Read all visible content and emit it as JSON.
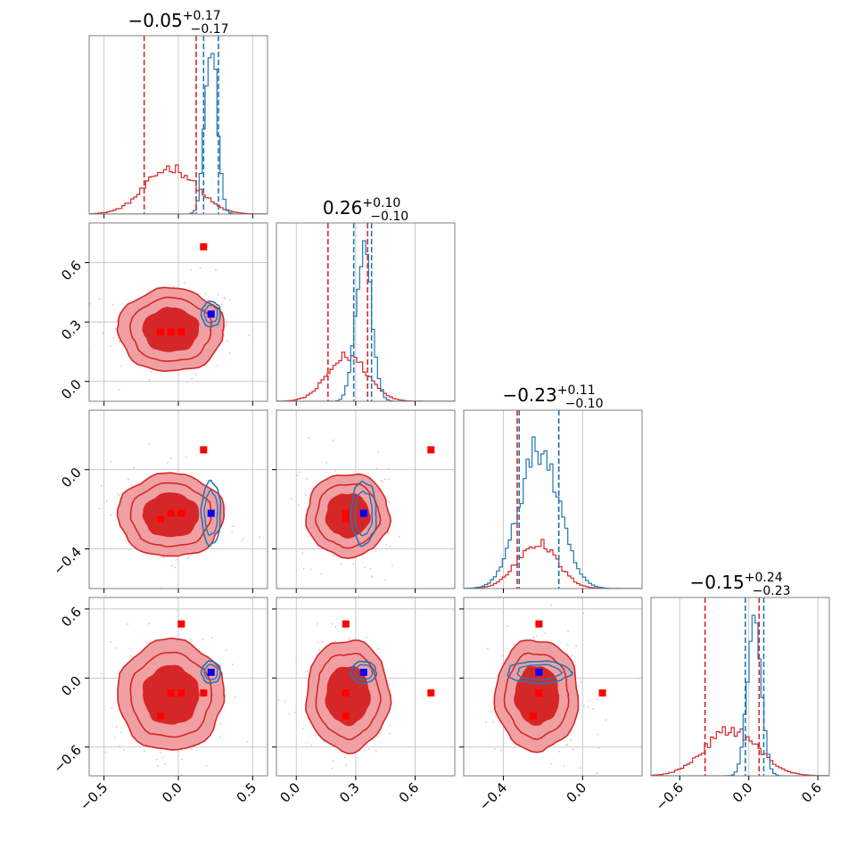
{
  "colors": {
    "posterior_a": "#d62728",
    "posterior_a_fill_light": "#f0a0a2",
    "posterior_b": "#1f77b4",
    "marker_truth": "#0000ff",
    "marker_other": "#ff0000",
    "grid": "#c8c8c8",
    "scatter_a": "#f6b7be",
    "scatter_b": "#b9cde6"
  },
  "chart_data": {
    "type": "corner",
    "parameters": [
      {
        "index": 0,
        "title_main": "−0.05",
        "title_sup": "+0.17",
        "title_sub": "−0.17",
        "range": [
          -0.6,
          0.6
        ],
        "ticks": [
          -0.5,
          0.0,
          0.5
        ],
        "tick_labels": [
          "−0.5",
          "0.0",
          "0.5"
        ],
        "hist_a": {
          "mean": -0.05,
          "sd": 0.17,
          "dashed": [
            -0.23,
            0.12
          ]
        },
        "hist_b": {
          "mean": 0.22,
          "sd": 0.04,
          "dashed": [
            0.17,
            0.27
          ]
        }
      },
      {
        "index": 1,
        "title_main": "0.26",
        "title_sup": "+0.10",
        "title_sub": "−0.10",
        "range": [
          -0.1,
          0.8
        ],
        "ticks": [
          0.0,
          0.3,
          0.6
        ],
        "tick_labels": [
          "0.0",
          "0.3",
          "0.6"
        ],
        "hist_a": {
          "mean": 0.26,
          "sd": 0.1,
          "dashed": [
            0.16,
            0.36
          ]
        },
        "hist_b": {
          "mean": 0.34,
          "sd": 0.04,
          "dashed": [
            0.29,
            0.38
          ]
        }
      },
      {
        "index": 2,
        "title_main": "−0.23",
        "title_sup": "+0.11",
        "title_sub": "−0.10",
        "range": [
          -0.6,
          0.3
        ],
        "ticks": [
          -0.4,
          0.0
        ],
        "tick_labels": [
          "−0.4",
          "0.0"
        ],
        "hist_a": {
          "mean": -0.23,
          "sd": 0.1,
          "dashed": [
            -0.33,
            -0.12
          ]
        },
        "hist_b": {
          "mean": -0.22,
          "sd": 0.1,
          "dashed": [
            -0.32,
            -0.12
          ]
        }
      },
      {
        "index": 3,
        "title_main": "−0.15",
        "title_sup": "+0.24",
        "title_sub": "−0.23",
        "range": [
          -0.85,
          0.7
        ],
        "ticks": [
          -0.6,
          0.0,
          0.6
        ],
        "tick_labels": [
          "−0.6",
          "0.0",
          "0.6"
        ],
        "hist_a": {
          "mean": -0.15,
          "sd": 0.23,
          "dashed": [
            -0.38,
            0.09
          ]
        },
        "hist_b": {
          "mean": 0.05,
          "sd": 0.06,
          "dashed": [
            -0.03,
            0.13
          ]
        }
      }
    ],
    "markers": {
      "blue": [
        0.22,
        0.34,
        -0.22,
        0.05
      ],
      "red": [
        [
          -0.05,
          0.25,
          -0.22,
          -0.13
        ],
        [
          0.02,
          0.25,
          -0.22,
          -0.13
        ],
        [
          0.17,
          0.68,
          0.1,
          -0.13
        ],
        [
          -0.12,
          0.25,
          -0.25,
          -0.33
        ],
        [
          0.02,
          0.25,
          -0.22,
          0.47
        ]
      ]
    },
    "grid": true
  }
}
